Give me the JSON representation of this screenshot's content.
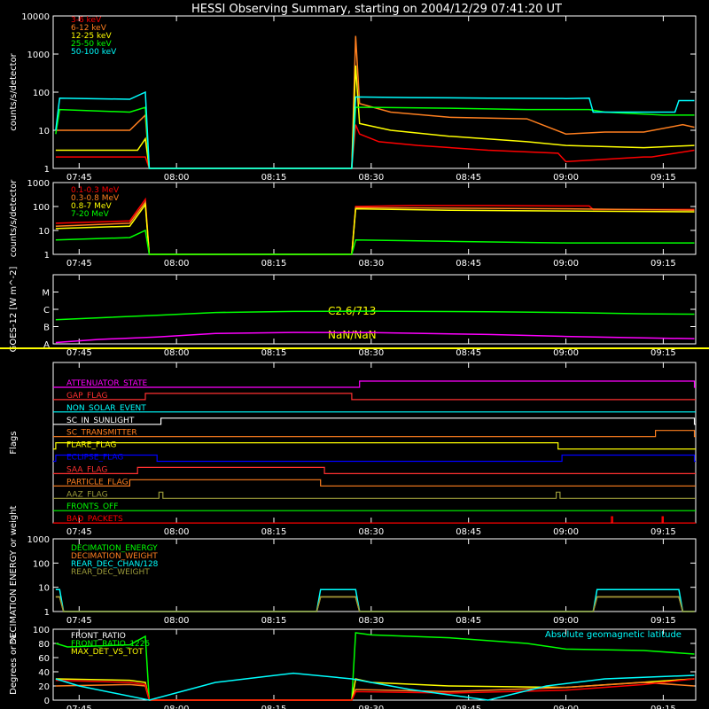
{
  "title": "HESSI Observing Summary, starting on 2004/12/29 07:41:20 UT",
  "time_ticks": [
    "07:45",
    "08:00",
    "08:15",
    "08:30",
    "08:45",
    "09:00",
    "09:15"
  ],
  "colors": {
    "red": "#ff0000",
    "orange": "#ff7f1f",
    "yellow": "#ffff00",
    "green": "#00ff00",
    "cyan": "#00ffff",
    "magenta": "#ff00ff",
    "blue": "#0000ff",
    "olive": "#9a9a3a",
    "white": "#ffffff"
  },
  "annotations": {
    "goes_class": "C2.6/713",
    "goes_nan": "NaN/NaN",
    "geomag": "Absolute geomagnetic latitude"
  },
  "chart_data": [
    {
      "id": "lowE",
      "type": "line",
      "ylabel": "counts/s/detector",
      "yscale": "log",
      "ylim": [
        1,
        10000
      ],
      "yticks": [
        "1",
        "10",
        "100",
        "1000",
        "10000"
      ],
      "series": [
        {
          "name": "3-6 keV",
          "color": "#ff0000",
          "x": [
            7.69,
            7.92,
            7.93,
            8.45,
            8.46,
            8.47,
            8.52,
            8.62,
            8.8,
            8.98,
            9.0,
            9.2,
            9.22,
            9.33
          ],
          "y": [
            2,
            2,
            0,
            0,
            14,
            8,
            5,
            4,
            3,
            2.5,
            1.5,
            2,
            2,
            3
          ]
        },
        {
          "name": "6-12 keV",
          "color": "#ff7f1f",
          "x": [
            7.69,
            7.88,
            7.92,
            7.93,
            8.45,
            8.46,
            8.47,
            8.55,
            8.7,
            8.9,
            9.0,
            9.1,
            9.2,
            9.3,
            9.33
          ],
          "y": [
            10,
            10,
            25,
            0,
            0,
            3000,
            50,
            30,
            22,
            20,
            8,
            9,
            9,
            14,
            12
          ]
        },
        {
          "name": "12-25 keV",
          "color": "#ffff00",
          "x": [
            7.69,
            7.9,
            7.92,
            7.93,
            8.45,
            8.46,
            8.47,
            8.55,
            8.7,
            8.9,
            9.0,
            9.2,
            9.33
          ],
          "y": [
            3,
            3,
            6,
            0,
            0,
            500,
            15,
            10,
            7,
            5,
            4,
            3.5,
            4
          ]
        },
        {
          "name": "25-50 keV",
          "color": "#00ff00",
          "x": [
            7.69,
            7.7,
            7.88,
            7.92,
            7.93,
            8.45,
            8.46,
            8.5,
            8.7,
            8.9,
            9.06,
            9.1,
            9.25,
            9.33
          ],
          "y": [
            8,
            35,
            30,
            40,
            0,
            0,
            40,
            40,
            38,
            35,
            35,
            30,
            25,
            25
          ]
        },
        {
          "name": "50-100 keV",
          "color": "#00ffff",
          "x": [
            7.69,
            7.7,
            7.88,
            7.92,
            7.93,
            8.45,
            8.46,
            8.6,
            8.8,
            9.0,
            9.06,
            9.07,
            9.28,
            9.29,
            9.33
          ],
          "y": [
            10,
            70,
            65,
            100,
            0,
            0,
            75,
            72,
            70,
            68,
            70,
            30,
            30,
            60,
            60
          ]
        }
      ]
    },
    {
      "id": "highE",
      "type": "line",
      "ylabel": "counts/s/detector",
      "yscale": "log",
      "ylim": [
        1,
        1000
      ],
      "yticks": [
        "1",
        "10",
        "100",
        "1000"
      ],
      "series": [
        {
          "name": "0.1-0.3 MeV",
          "color": "#ff0000",
          "x": [
            7.69,
            7.88,
            7.92,
            7.93,
            8.45,
            8.46,
            8.6,
            8.8,
            9.0,
            9.06,
            9.07,
            9.33
          ],
          "y": [
            20,
            25,
            200,
            0,
            0,
            100,
            110,
            110,
            105,
            105,
            75,
            75
          ]
        },
        {
          "name": "0.3-0.8 MeV",
          "color": "#ff7f1f",
          "x": [
            7.69,
            7.88,
            7.92,
            7.93,
            8.45,
            8.46,
            8.7,
            9.0,
            9.33
          ],
          "y": [
            15,
            20,
            150,
            0,
            0,
            90,
            85,
            80,
            70
          ]
        },
        {
          "name": "0.8-7 MeV",
          "color": "#ffff00",
          "x": [
            7.69,
            7.88,
            7.92,
            7.93,
            8.45,
            8.46,
            8.7,
            9.0,
            9.33
          ],
          "y": [
            12,
            15,
            120,
            0,
            0,
            80,
            70,
            65,
            60
          ]
        },
        {
          "name": "7-20 MeV",
          "color": "#00ff00",
          "x": [
            7.69,
            7.88,
            7.92,
            7.93,
            8.45,
            8.46,
            8.7,
            9.0,
            9.33
          ],
          "y": [
            4,
            5,
            10,
            0,
            0,
            4,
            3.5,
            3,
            3
          ]
        }
      ]
    },
    {
      "id": "goes",
      "type": "line",
      "ylabel": "GOES-12 [W m^-2]",
      "yscale": "log",
      "ylim": [
        1e-08,
        0.0001
      ],
      "yticks": [
        "A",
        "B",
        "C",
        "M"
      ],
      "series": [
        {
          "name": "",
          "color": "#00ff00",
          "x": [
            7.69,
            7.8,
            7.95,
            8.1,
            8.3,
            8.5,
            8.8,
            9.0,
            9.2,
            9.33
          ],
          "y": [
            2.5e-07,
            3.2e-07,
            4.5e-07,
            6.5e-07,
            7.5e-07,
            7.8e-07,
            7.3e-07,
            6.5e-07,
            5.5e-07,
            5.2e-07
          ]
        },
        {
          "name": "",
          "color": "#ff00ff",
          "x": [
            7.69,
            7.8,
            7.95,
            8.1,
            8.3,
            8.5,
            8.8,
            9.0,
            9.2,
            9.33
          ],
          "y": [
            1.2e-08,
            1.8e-08,
            2.5e-08,
            4e-08,
            4.6e-08,
            4.5e-08,
            3.5e-08,
            2.7e-08,
            2.2e-08,
            2e-08
          ]
        }
      ]
    },
    {
      "id": "flags",
      "type": "line",
      "ylabel": "Flags",
      "flags": [
        {
          "name": "ATTENUATOR_STATE",
          "color": "#ff00ff",
          "on": [
            [
              8.47,
              9.33
            ]
          ]
        },
        {
          "name": "GAP_FLAG",
          "color": "#ff3030",
          "on": [
            [
              7.92,
              8.45
            ]
          ]
        },
        {
          "name": "NON_SOLAR_EVENT",
          "color": "#00ffff",
          "on": []
        },
        {
          "name": "SC_IN_SUNLIGHT",
          "color": "#ffffff",
          "on": [
            [
              7.96,
              9.33
            ]
          ]
        },
        {
          "name": "SC_TRANSMITTER",
          "color": "#ff7f1f",
          "on": [
            [
              9.23,
              9.33
            ]
          ]
        },
        {
          "name": "FLARE_FLAG",
          "color": "#ffff00",
          "on": [
            [
              7.69,
              8.98
            ]
          ]
        },
        {
          "name": "ECLIPSE_FLAG",
          "color": "#0000ff",
          "on": [
            [
              7.69,
              7.95
            ],
            [
              8.99,
              9.33
            ]
          ]
        },
        {
          "name": "SAA_FLAG",
          "color": "#ff3030",
          "on": [
            [
              7.9,
              8.38
            ]
          ]
        },
        {
          "name": "PARTICLE_FLAG",
          "color": "#ff7f1f",
          "on": [
            [
              7.88,
              8.37
            ]
          ]
        },
        {
          "name": "AAZ_FLAG",
          "color": "#9a9a3a",
          "on": [
            [
              7.955,
              7.965
            ],
            [
              8.975,
              8.985
            ]
          ]
        },
        {
          "name": "FRONTS_OFF",
          "color": "#00ff00",
          "on": []
        },
        {
          "name": "BAD_PACKETS",
          "color": "#ff0000",
          "on": [
            [
              9.117,
              9.12
            ],
            [
              9.247,
              9.25
            ]
          ]
        }
      ]
    },
    {
      "id": "decim",
      "type": "line",
      "ylabel": "DECIMATION ENERGY or weight",
      "yscale": "log",
      "ylim": [
        1,
        1000
      ],
      "yticks": [
        "1",
        "10",
        "100",
        "1000"
      ],
      "series": [
        {
          "name": "DECIMATION_ENERGY",
          "color": "#00ff00",
          "x": [],
          "y": []
        },
        {
          "name": "DECIMATION_WEIGHT",
          "color": "#ff7f1f",
          "x": [
            7.69,
            7.7,
            7.71,
            8.36,
            8.37,
            8.46,
            8.47,
            9.07,
            9.08,
            9.29,
            9.3,
            9.33
          ],
          "y": [
            4,
            4,
            1,
            1,
            4,
            4,
            1,
            1,
            4,
            4,
            1,
            1
          ]
        },
        {
          "name": "REAR_DEC_CHAN/128",
          "color": "#00ffff",
          "x": [
            7.69,
            7.7,
            7.71,
            8.36,
            8.37,
            8.46,
            8.47,
            9.07,
            9.08,
            9.29,
            9.3,
            9.33
          ],
          "y": [
            8,
            8,
            1,
            1,
            8,
            8,
            1,
            1,
            8,
            8,
            1,
            1
          ]
        },
        {
          "name": "REAR_DEC_WEIGHT",
          "color": "#9a9a3a",
          "x": [
            7.69,
            7.7,
            7.71,
            8.36,
            8.37,
            8.46,
            8.47,
            9.07,
            9.08,
            9.29,
            9.3,
            9.33
          ],
          "y": [
            4,
            4,
            1,
            1,
            4,
            4,
            1,
            1,
            4,
            4,
            1,
            1
          ]
        }
      ]
    },
    {
      "id": "ratio",
      "type": "line",
      "ylabel": "Degrees or %",
      "yscale": "linear",
      "ylim": [
        0,
        100
      ],
      "yticks": [
        "0",
        "20",
        "40",
        "60",
        "80",
        "100"
      ],
      "series": [
        {
          "name": "FRONT_RATIO",
          "color": "#ffffff",
          "x": [],
          "y": []
        },
        {
          "name": "FRONT_RATIO_1225",
          "color": "#00ff00",
          "x": [
            7.69,
            7.72,
            7.88,
            7.92,
            7.93,
            8.45,
            8.46,
            8.5,
            8.7,
            8.9,
            9.0,
            9.2,
            9.33
          ],
          "y": [
            80,
            75,
            78,
            90,
            0,
            0,
            95,
            92,
            88,
            80,
            72,
            70,
            65
          ]
        },
        {
          "name": "MAX_DET_VS_TOT",
          "color": "#ffff00",
          "x": [
            7.69,
            7.88,
            7.92,
            7.93,
            8.45,
            8.46,
            8.5,
            8.7,
            9.0,
            9.33
          ],
          "y": [
            30,
            28,
            25,
            0,
            0,
            30,
            25,
            20,
            18,
            30
          ]
        },
        {
          "name": "",
          "color": "#ff7f1f",
          "x": [
            7.69,
            7.88,
            7.92,
            7.93,
            8.45,
            8.46,
            8.7,
            9.0,
            9.2,
            9.33
          ],
          "y": [
            20,
            22,
            20,
            0,
            0,
            15,
            12,
            18,
            25,
            20
          ]
        },
        {
          "name": "",
          "color": "#ff0000",
          "x": [
            7.69,
            7.88,
            7.92,
            7.93,
            8.45,
            8.46,
            8.7,
            9.0,
            9.2,
            9.33
          ],
          "y": [
            28,
            25,
            22,
            0,
            0,
            12,
            10,
            14,
            22,
            30
          ]
        },
        {
          "name": "",
          "color": "#00ffff",
          "x": [
            7.69,
            7.75,
            7.93,
            8.1,
            8.3,
            8.45,
            8.6,
            8.8,
            8.95,
            9.1,
            9.33
          ],
          "y": [
            30,
            20,
            0,
            25,
            38,
            30,
            15,
            0,
            20,
            30,
            35
          ]
        }
      ]
    }
  ]
}
